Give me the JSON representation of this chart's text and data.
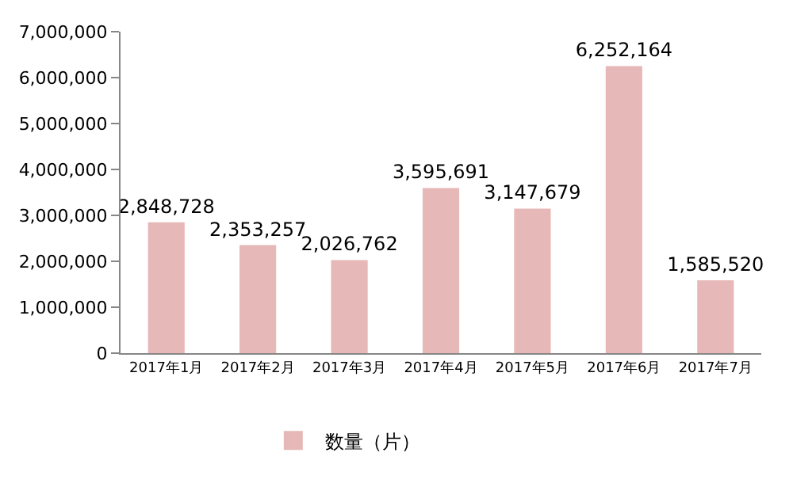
{
  "chart_data": {
    "type": "bar",
    "categories": [
      "2017年1月",
      "2017年2月",
      "2017年3月",
      "2017年4月",
      "2017年5月",
      "2017年6月",
      "2017年7月"
    ],
    "series": [
      {
        "name": "数量（片）",
        "color": "#e6b8b7",
        "values": [
          2848728,
          2353257,
          2026762,
          3595691,
          3147679,
          6252164,
          1585520
        ],
        "value_labels": [
          "2,848,728",
          "2,353,257",
          "2,026,762",
          "3,595,691",
          "3,147,679",
          "6,252,164",
          "1,585,520"
        ]
      }
    ],
    "ylim": [
      0,
      7000000
    ],
    "yticks": [
      0,
      {
        "value": 1000000,
        "label": "1,000,000"
      },
      {
        "value": 2000000,
        "label": "2,000,000"
      },
      {
        "value": 3000000,
        "label": "3,000,000"
      },
      {
        "value": 4000000,
        "label": "4,000,000"
      },
      {
        "value": 5000000,
        "label": "5,000,000"
      },
      {
        "value": 6000000,
        "label": "6,000,000"
      },
      {
        "value": 7000000,
        "label": "7,000,000"
      }
    ],
    "grid": false,
    "legend": "bottom"
  }
}
